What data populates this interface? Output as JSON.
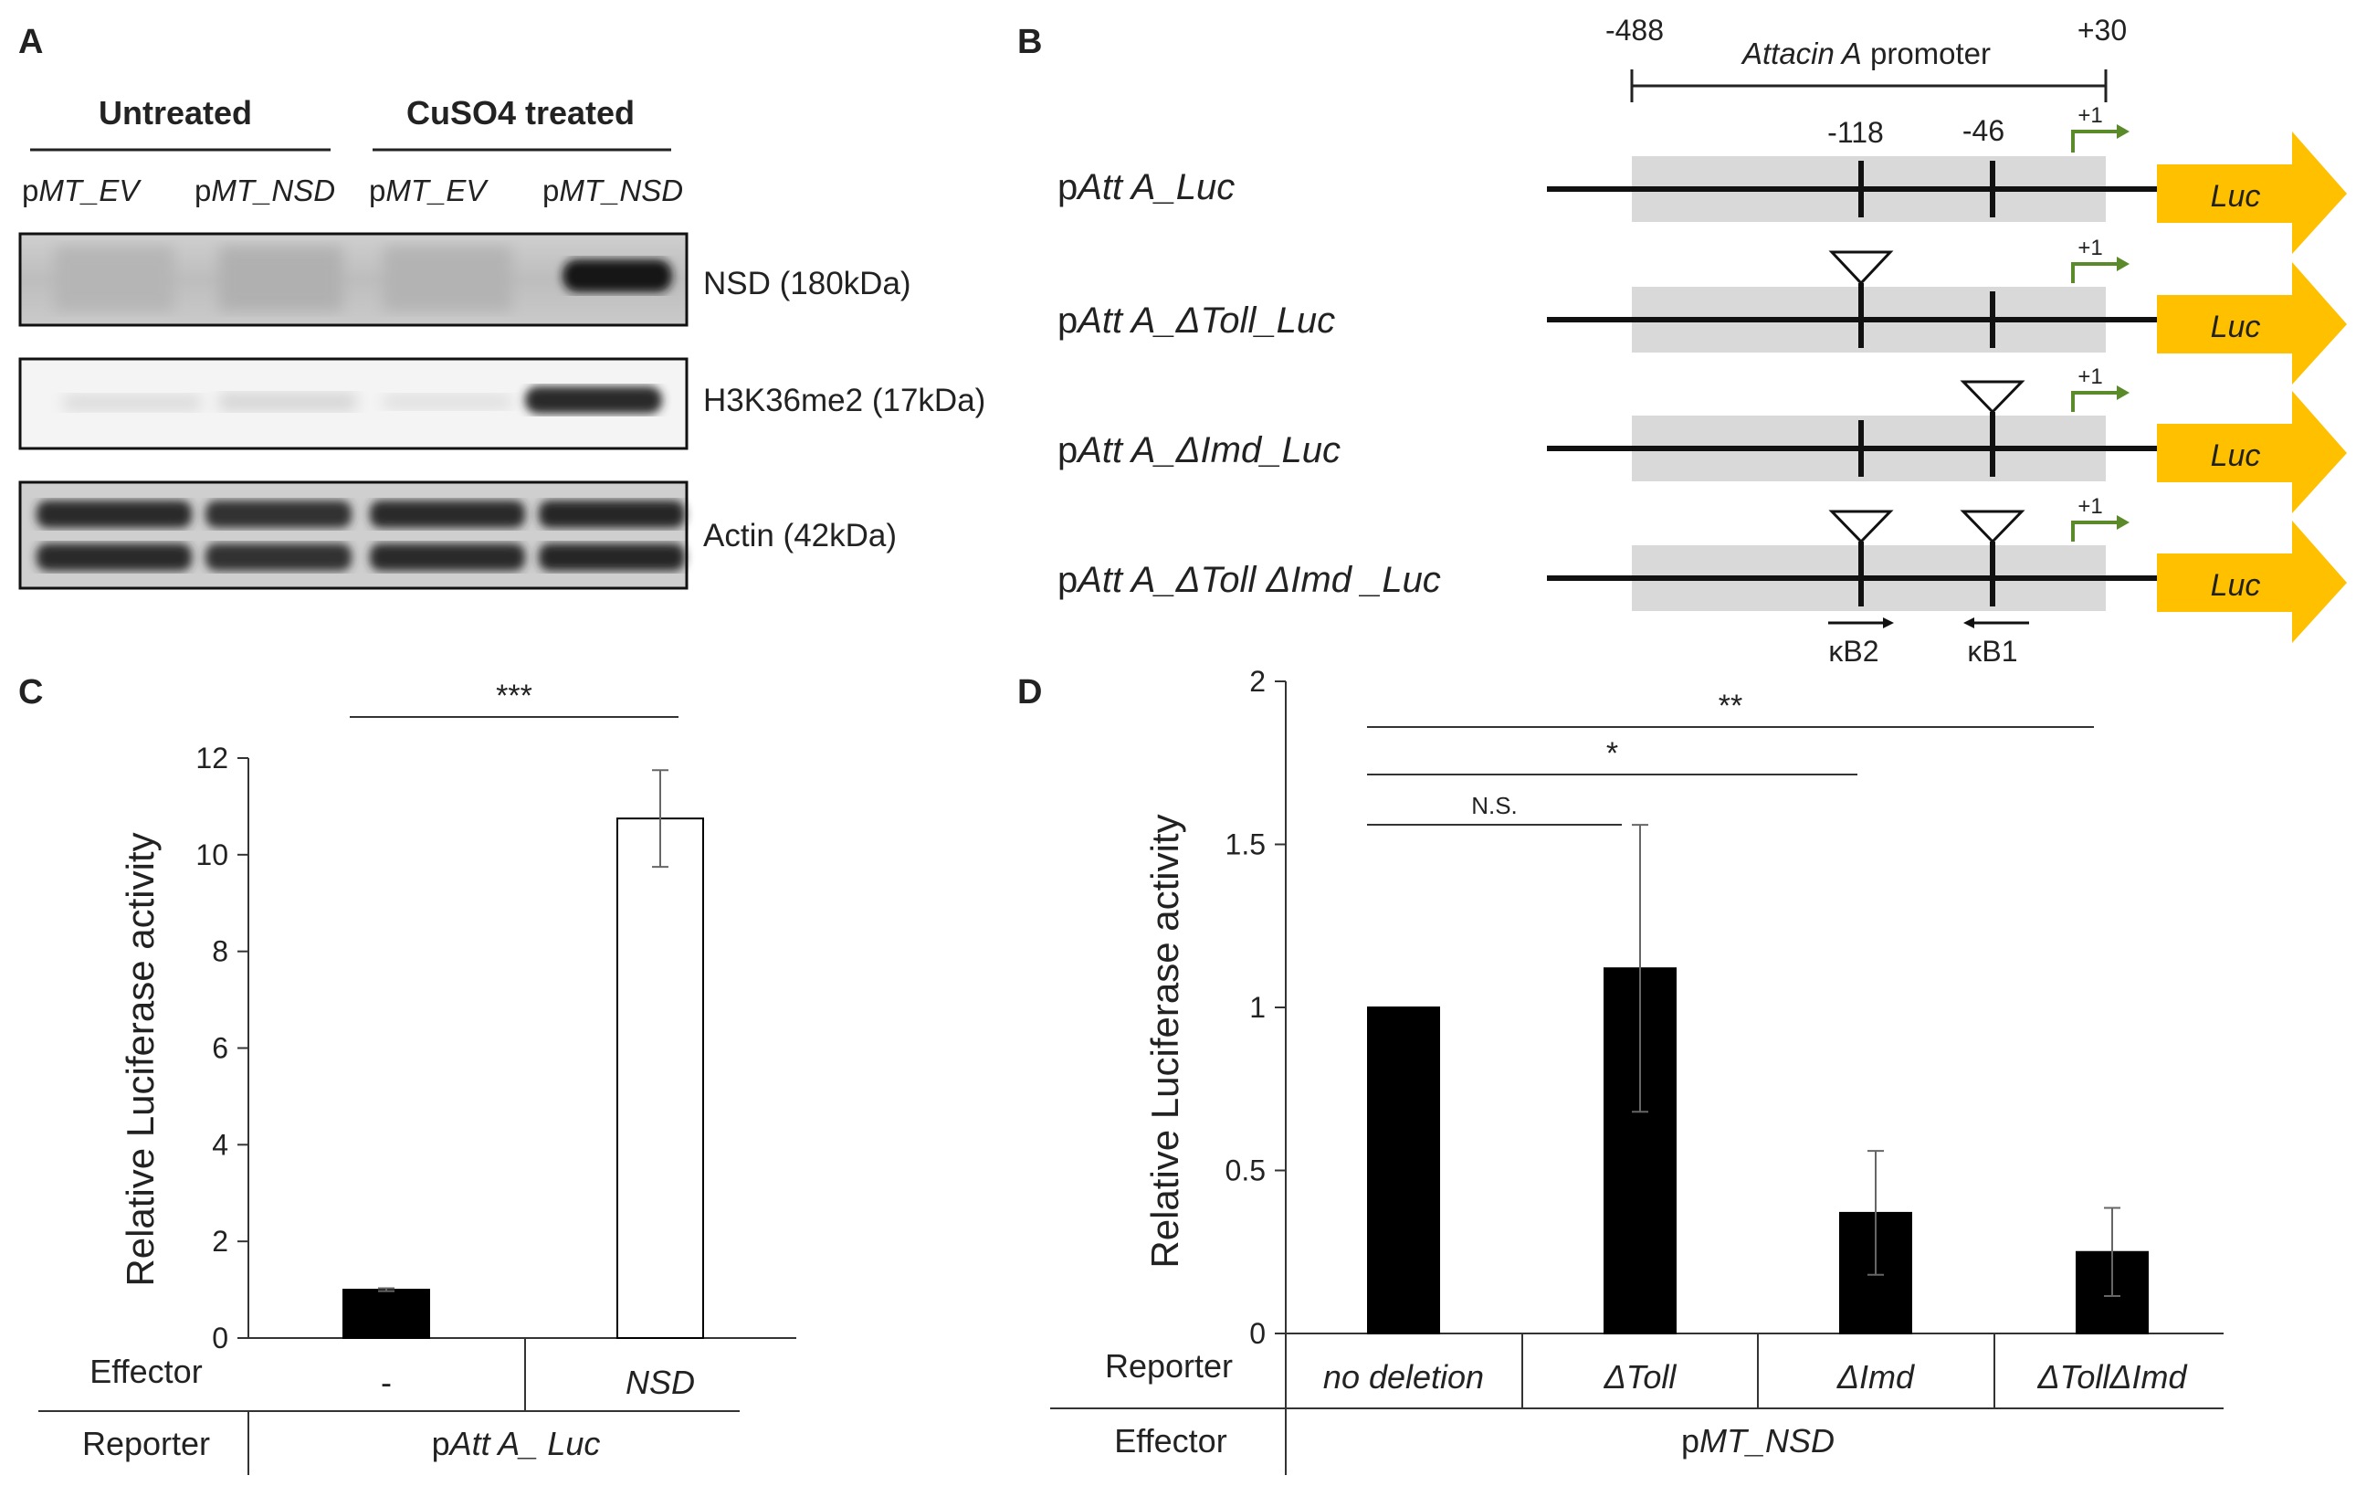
{
  "colors": {
    "black_bar": "#000000",
    "white_bar": "#ffffff",
    "luc_arrow": "#ffc000",
    "tss_arrow": "#5a8a2a",
    "promoter_box": "#d9d9d9"
  },
  "panel_a": {
    "label": "A",
    "group_untreated": "Untreated",
    "group_treated": "CuSO4 treated",
    "lanes": [
      {
        "p": "p",
        "name": "MT_EV"
      },
      {
        "p": "p",
        "name": "MT_NSD"
      },
      {
        "p": "p",
        "name": "MT_EV"
      },
      {
        "p": "p",
        "name": "MT_NSD"
      }
    ],
    "blots": [
      "NSD (180kDa)",
      "H3K36me2 (17kDa)",
      "Actin (42kDa)"
    ]
  },
  "panel_b": {
    "label": "B",
    "start": "-488",
    "end": "+30",
    "promoter_italic": "Attacin A",
    "promoter_rest": " promoter",
    "pos_118": "-118",
    "pos_46": "-46",
    "tss": "+1",
    "luc": "Luc",
    "kb2": "κB2",
    "kb1": "κB1",
    "constructs": [
      {
        "p": "p",
        "name": "Att A_Luc"
      },
      {
        "p": "p",
        "name": "Att A_ΔToll_Luc"
      },
      {
        "p": "p",
        "name": "Att A_ΔImd_Luc"
      },
      {
        "p": "p",
        "name": "Att A_ΔToll ΔImd _Luc"
      }
    ]
  },
  "chart_data": [
    {
      "panel": "C",
      "type": "bar",
      "ylabel": "Relative Luciferase activity",
      "ylim": [
        0,
        12
      ],
      "yticks": [
        "0",
        "2",
        "4",
        "6",
        "8",
        "10",
        "12"
      ],
      "categories": [
        "-",
        "NSD"
      ],
      "values": [
        1.0,
        10.75
      ],
      "errors": [
        0.03,
        1.0
      ],
      "bar_colors": [
        "#000000",
        "#ffffff"
      ],
      "significance": [
        {
          "text": "***",
          "from": 0,
          "to": 1
        }
      ],
      "row_effector_label": "Effector",
      "row_reporter_label": "Reporter",
      "reporter_p": "p",
      "reporter_value": "Att A_ Luc"
    },
    {
      "panel": "D",
      "type": "bar",
      "ylabel": "Relative Luciferase activity",
      "ylim": [
        0,
        2
      ],
      "yticks": [
        "0",
        "0.5",
        "1",
        "1.5",
        "2"
      ],
      "categories": [
        "no deletion",
        "ΔToll",
        "ΔImd",
        "ΔTollΔImd"
      ],
      "values": [
        1.0,
        1.12,
        0.37,
        0.25
      ],
      "errors": [
        0.0,
        0.44,
        0.19,
        0.135
      ],
      "bar_colors": [
        "#000000",
        "#000000",
        "#000000",
        "#000000"
      ],
      "significance": [
        {
          "text": "N.S.",
          "from": 0,
          "to": 1
        },
        {
          "text": "*",
          "from": 0,
          "to": 2
        },
        {
          "text": "**",
          "from": 0,
          "to": 3
        }
      ],
      "row_reporter_label": "Reporter",
      "row_effector_label": "Effector",
      "effector_p": "p",
      "effector_value": "MT_NSD"
    }
  ]
}
